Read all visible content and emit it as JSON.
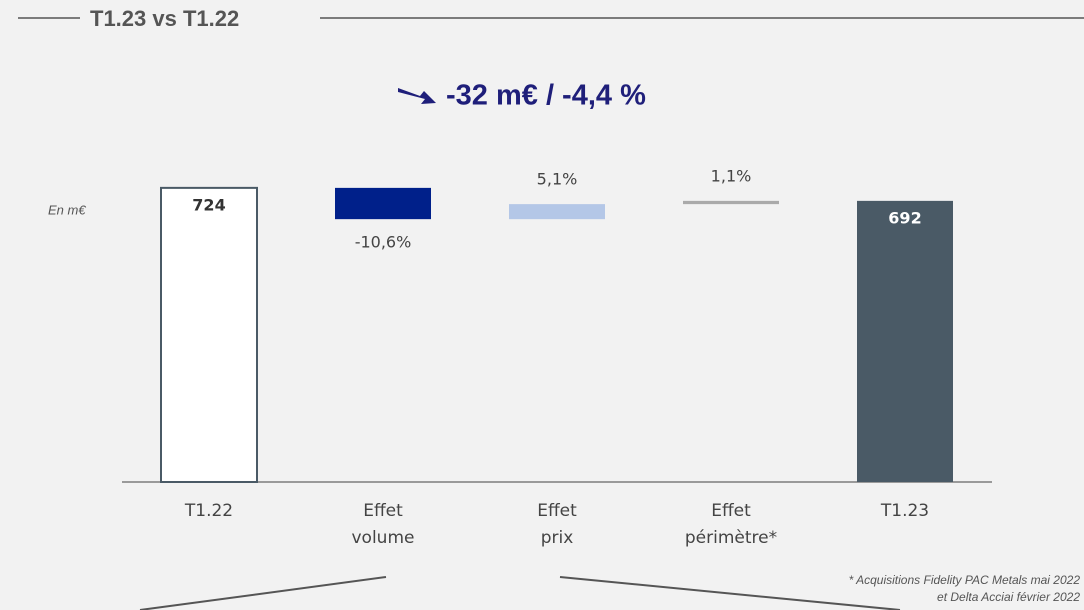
{
  "section_title": "T1.23 vs T1.22",
  "headline": "-32 m€ / -4,4 %",
  "chart_data": {
    "type": "waterfall",
    "unit_label": "En m€",
    "categories": [
      "T1.22",
      "Effet\nvolume",
      "Effet\nprix",
      "Effet\npérimètre*",
      "T1.23"
    ],
    "values": [
      724,
      -77,
      37,
      8,
      692
    ],
    "change_labels": [
      null,
      "-10,6%",
      "5,1%",
      "1,1%",
      null
    ],
    "colors": [
      "#ffffff",
      "#00208a",
      "#b4c7e7",
      "#aaaaaa",
      "#4a5a66"
    ],
    "label_colors": [
      "#333333",
      null,
      null,
      null,
      "#ffffff"
    ],
    "ylim": [
      0,
      800
    ]
  },
  "footnote": [
    "* Acquisitions Fidelity PAC Metals mai 2022",
    "et Delta Acciai février 2022"
  ]
}
